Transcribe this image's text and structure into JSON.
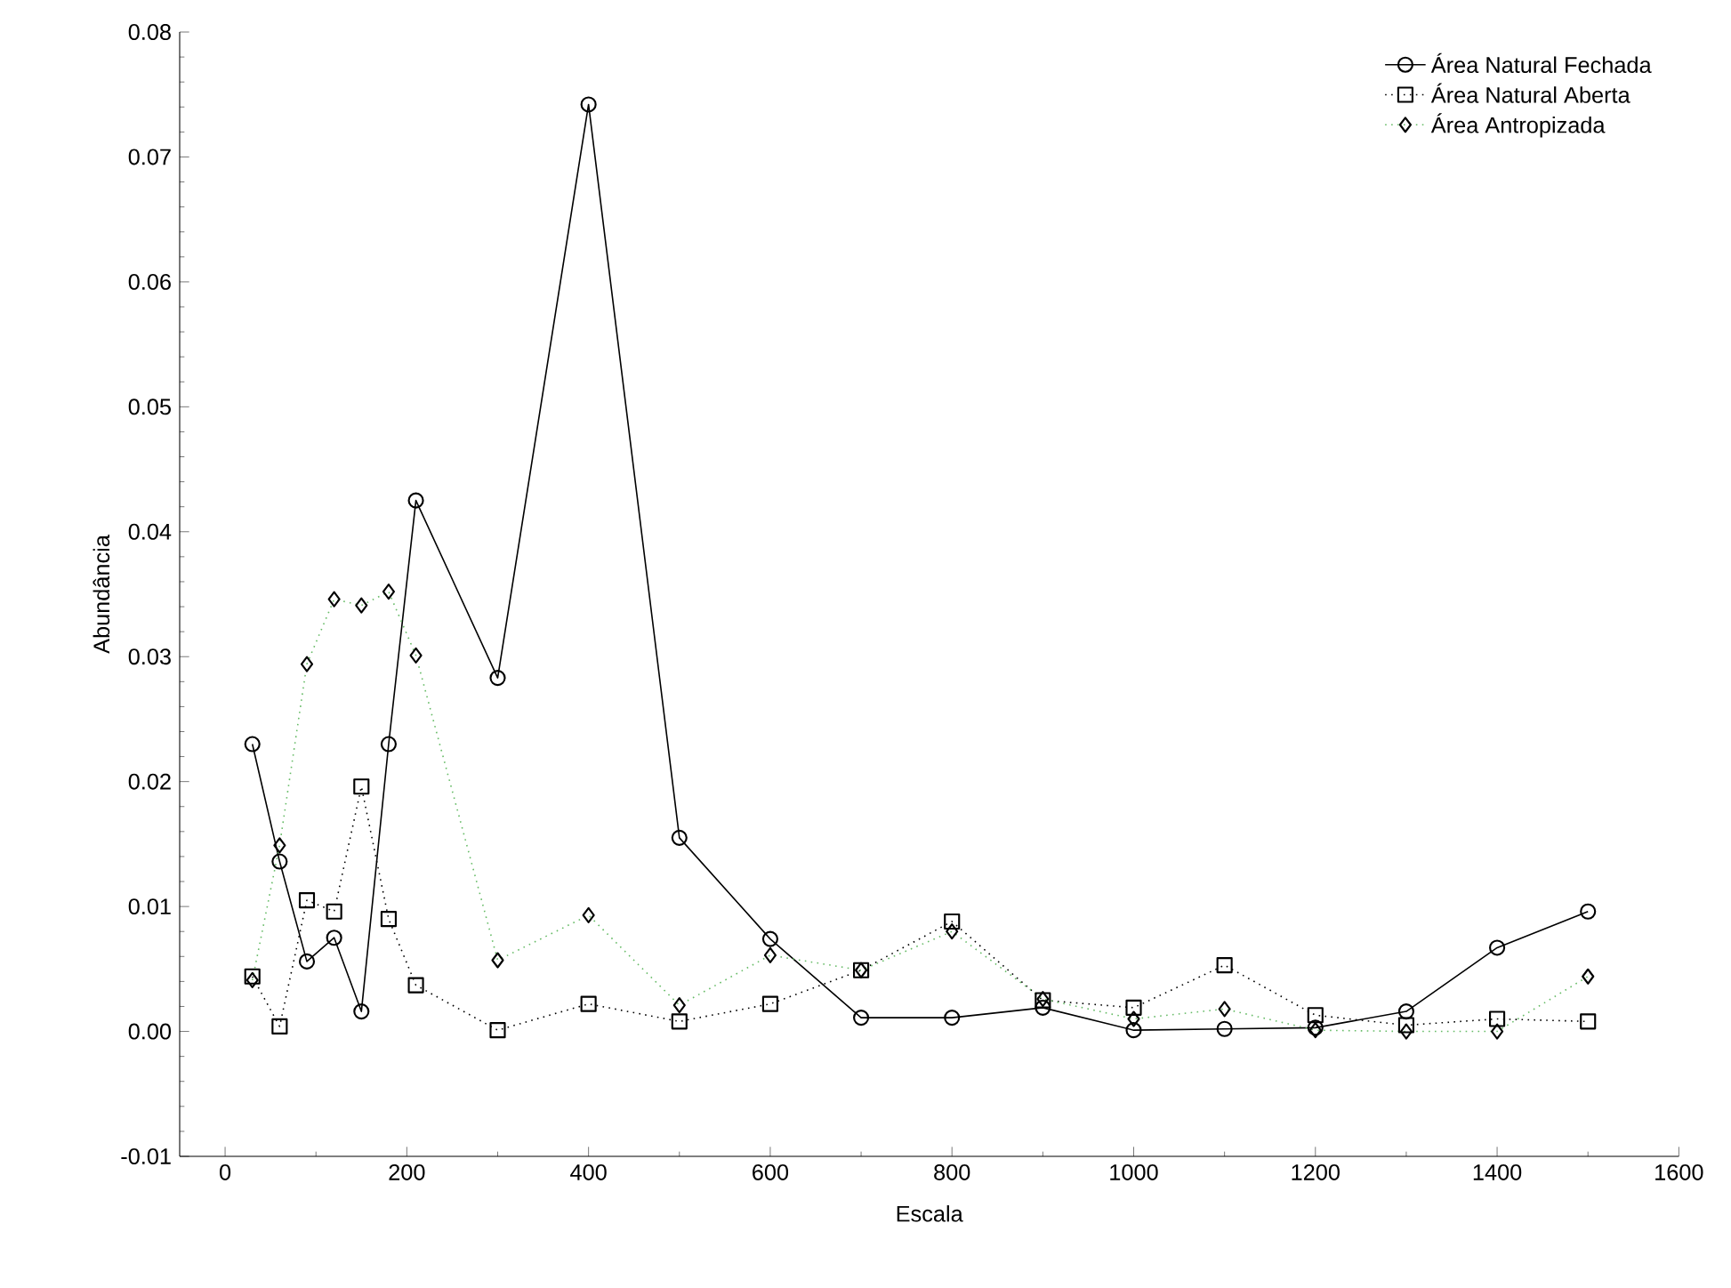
{
  "chart_data": {
    "type": "line",
    "xlabel": "Escala",
    "ylabel": "Abundância",
    "x": [
      30,
      60,
      90,
      120,
      150,
      180,
      210,
      300,
      400,
      500,
      600,
      700,
      800,
      900,
      1000,
      1100,
      1200,
      1300,
      1400,
      1500
    ],
    "series": [
      {
        "name": "Área Natural Fechada",
        "color": "#000000",
        "marker": "circle",
        "line_style": "solid",
        "values": [
          0.023,
          0.0136,
          0.0056,
          0.0075,
          0.0016,
          0.023,
          0.0425,
          0.0283,
          0.0742,
          0.0155,
          0.0074,
          0.0011,
          0.0011,
          0.0019,
          0.0001,
          0.0002,
          0.0003,
          0.0016,
          0.0067,
          0.0096
        ]
      },
      {
        "name": "Área Natural Aberta",
        "color": "#000000",
        "marker": "square",
        "line_style": "dotted",
        "values": [
          0.0044,
          0.0004,
          0.0105,
          0.0096,
          0.0196,
          0.009,
          0.0037,
          0.0001,
          0.0022,
          0.0008,
          0.0022,
          0.0049,
          0.0088,
          0.0025,
          0.0019,
          0.0053,
          0.0013,
          0.0005,
          0.001,
          0.0008
        ]
      },
      {
        "name": "Área Antropizada",
        "color": "#66bb66",
        "marker": "diamond",
        "line_style": "dotted",
        "values": [
          0.0041,
          0.0149,
          0.0294,
          0.0346,
          0.0341,
          0.0352,
          0.0301,
          0.0057,
          0.0093,
          0.0021,
          0.0061,
          0.0049,
          0.008,
          0.0026,
          0.001,
          0.0018,
          0.0001,
          0.0,
          0.0,
          0.0044
        ]
      }
    ],
    "xlim": [
      -50,
      1600
    ],
    "xticks": [
      0,
      200,
      400,
      600,
      800,
      1000,
      1200,
      1400,
      1600
    ],
    "ylim": [
      -0.01,
      0.08
    ],
    "yticks": [
      {
        "value": -0.01,
        "label": "-0.01"
      },
      {
        "value": 0,
        "label": "0.00"
      },
      {
        "value": 0.01,
        "label": "0.01"
      },
      {
        "value": 0.02,
        "label": "0.02"
      },
      {
        "value": 0.03,
        "label": "0.03"
      },
      {
        "value": 0.04,
        "label": "0.04"
      },
      {
        "value": 0.05,
        "label": "0.05"
      },
      {
        "value": 0.06,
        "label": "0.06"
      },
      {
        "value": 0.07,
        "label": "0.07"
      },
      {
        "value": 0.08,
        "label": "0.08"
      }
    ],
    "grid": false,
    "legend": "top right"
  }
}
